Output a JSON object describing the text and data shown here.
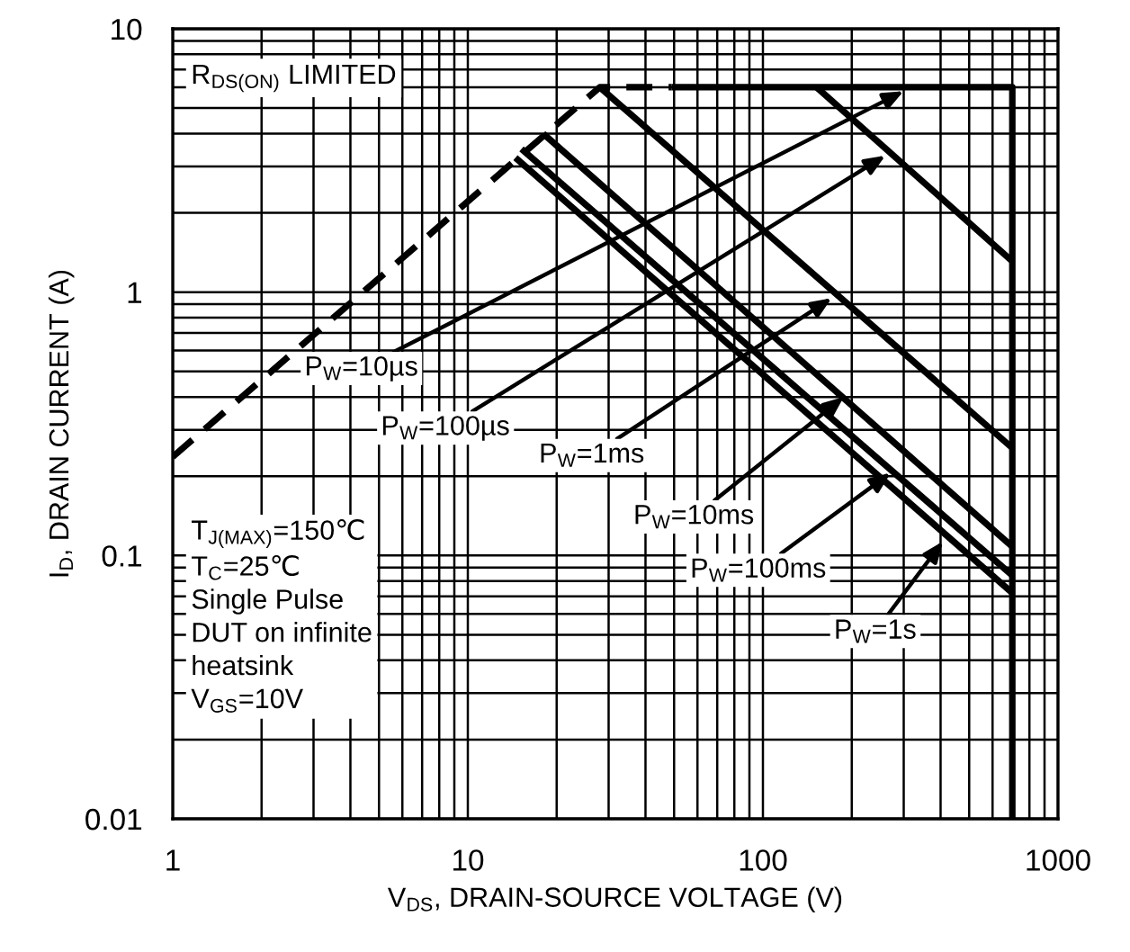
{
  "chart_data": {
    "type": "line",
    "xlabel": "V$_{DS}$, DRAIN-SOURCE VOLTAGE (V)",
    "ylabel": "I$_{D}$, DRAIN CURRENT (A)",
    "log": "xy",
    "xlim": [
      1,
      1000
    ],
    "ylim": [
      0.01,
      10
    ],
    "xticks": [
      1,
      10,
      100,
      1000
    ],
    "yticks": [
      0.01,
      0.1,
      1,
      10
    ],
    "grid": true,
    "legend": false,
    "series": [
      {
        "color": "#000000",
        "line_style": "dashed",
        "x": [
          1,
          28,
          49
        ],
        "values": [
          0.237,
          6,
          6
        ]
      },
      {
        "color": "#000000",
        "x": [
          49,
          700,
          700
        ],
        "values": [
          6,
          6,
          0.01
        ]
      },
      {
        "color": "#000000",
        "x": [
          152,
          700
        ],
        "values": [
          6,
          1.31
        ]
      },
      {
        "color": "#000000",
        "x": [
          28,
          700
        ],
        "values": [
          6,
          0.256
        ]
      },
      {
        "color": "#000000",
        "x": [
          18,
          700
        ],
        "values": [
          4.0,
          0.108
        ]
      },
      {
        "color": "#000000",
        "x": [
          15.2,
          700
        ],
        "values": [
          3.5,
          0.084
        ]
      },
      {
        "color": "#000000",
        "x": [
          14.5,
          700
        ],
        "values": [
          3.24,
          0.072
        ]
      }
    ],
    "annotations": [
      "R$_{DS(ON)}$ LIMITED",
      "T$_{J(MAX)}$=150℃\nT$_{C}$=25℃\nSingle Pulse\nDUT on infinite\nheatsink\nV$_{GS}$=10V",
      {
        "text": "P$_{W}$=10µs",
        "x": 300,
        "y": 5.8
      },
      {
        "text": "P$_{W}$=100µs",
        "x": 260,
        "y": 3.3
      },
      {
        "text": "P$_{W}$=1ms",
        "x": 171,
        "y": 0.95
      },
      {
        "text": "P$_{W}$=10ms",
        "x": 188,
        "y": 0.4
      },
      {
        "text": "P$_{W}$=100ms",
        "x": 271,
        "y": 0.206
      },
      {
        "text": "P$_{W}$=1s",
        "x": 407,
        "y": 0.113
      }
    ]
  }
}
